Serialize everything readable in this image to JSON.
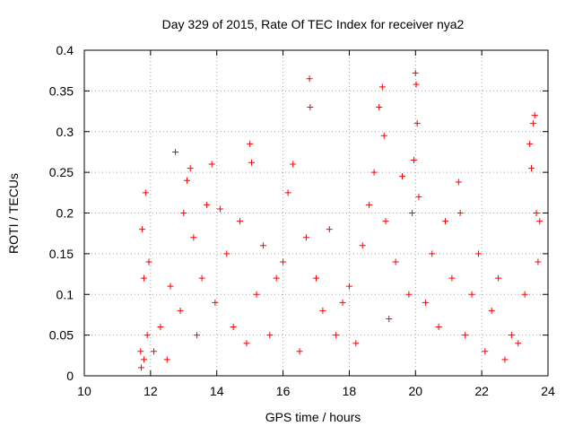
{
  "chart_data": {
    "type": "scatter",
    "title": "Day 329 of 2015, Rate Of TEC Index for receiver nya2",
    "xlabel": "GPS time / hours",
    "ylabel": "ROTI / TECUs",
    "xlim": [
      10,
      24
    ],
    "ylim": [
      0,
      0.4
    ],
    "xticks": [
      "10",
      "12",
      "14",
      "16",
      "18",
      "20",
      "22",
      "24"
    ],
    "yticks": [
      "0",
      "0.05",
      "0.1",
      "0.15",
      "0.2",
      "0.25",
      "0.3",
      "0.35",
      "0.4"
    ],
    "grid": true,
    "marker": "+",
    "color": "#ff0000",
    "series": [
      {
        "x": [
          11.7,
          11.75,
          11.8,
          11.85,
          11.9,
          11.8,
          11.72,
          11.95,
          12.1,
          12.3,
          12.5,
          12.6,
          12.75,
          12.9,
          13.0,
          13.1,
          13.2,
          13.3,
          13.4,
          13.55,
          13.7,
          13.85,
          13.95,
          14.1,
          14.3,
          14.5,
          14.7,
          14.9,
          15.0,
          15.05,
          15.2,
          15.4,
          15.6,
          15.8,
          16.0,
          16.15,
          16.3,
          16.5,
          16.7,
          16.8,
          16.82,
          17.0,
          17.2,
          17.4,
          17.6,
          17.8,
          18.0,
          18.2,
          18.4,
          18.6,
          18.75,
          18.9,
          19.0,
          19.05,
          19.1,
          19.2,
          19.4,
          19.6,
          19.8,
          19.9,
          19.95,
          20.0,
          20.02,
          20.05,
          20.1,
          20.3,
          20.5,
          20.7,
          20.9,
          21.1,
          21.3,
          21.35,
          21.5,
          21.7,
          21.9,
          22.1,
          22.3,
          22.5,
          22.7,
          22.9,
          23.1,
          23.3,
          23.45,
          23.5,
          23.55,
          23.6,
          23.65,
          23.7,
          23.75
        ],
        "y": [
          0.03,
          0.18,
          0.12,
          0.225,
          0.05,
          0.02,
          0.01,
          0.14,
          0.03,
          0.06,
          0.02,
          0.11,
          0.275,
          0.08,
          0.2,
          0.24,
          0.255,
          0.17,
          0.05,
          0.12,
          0.21,
          0.26,
          0.09,
          0.205,
          0.15,
          0.06,
          0.19,
          0.04,
          0.285,
          0.262,
          0.1,
          0.16,
          0.05,
          0.12,
          0.14,
          0.225,
          0.26,
          0.03,
          0.17,
          0.365,
          0.33,
          0.12,
          0.08,
          0.18,
          0.05,
          0.09,
          0.11,
          0.04,
          0.16,
          0.21,
          0.25,
          0.33,
          0.355,
          0.295,
          0.19,
          0.07,
          0.14,
          0.245,
          0.1,
          0.2,
          0.265,
          0.372,
          0.358,
          0.31,
          0.22,
          0.09,
          0.15,
          0.06,
          0.19,
          0.12,
          0.238,
          0.2,
          0.05,
          0.1,
          0.15,
          0.03,
          0.08,
          0.12,
          0.02,
          0.05,
          0.04,
          0.1,
          0.285,
          0.255,
          0.31,
          0.32,
          0.2,
          0.14,
          0.19
        ]
      }
    ]
  }
}
